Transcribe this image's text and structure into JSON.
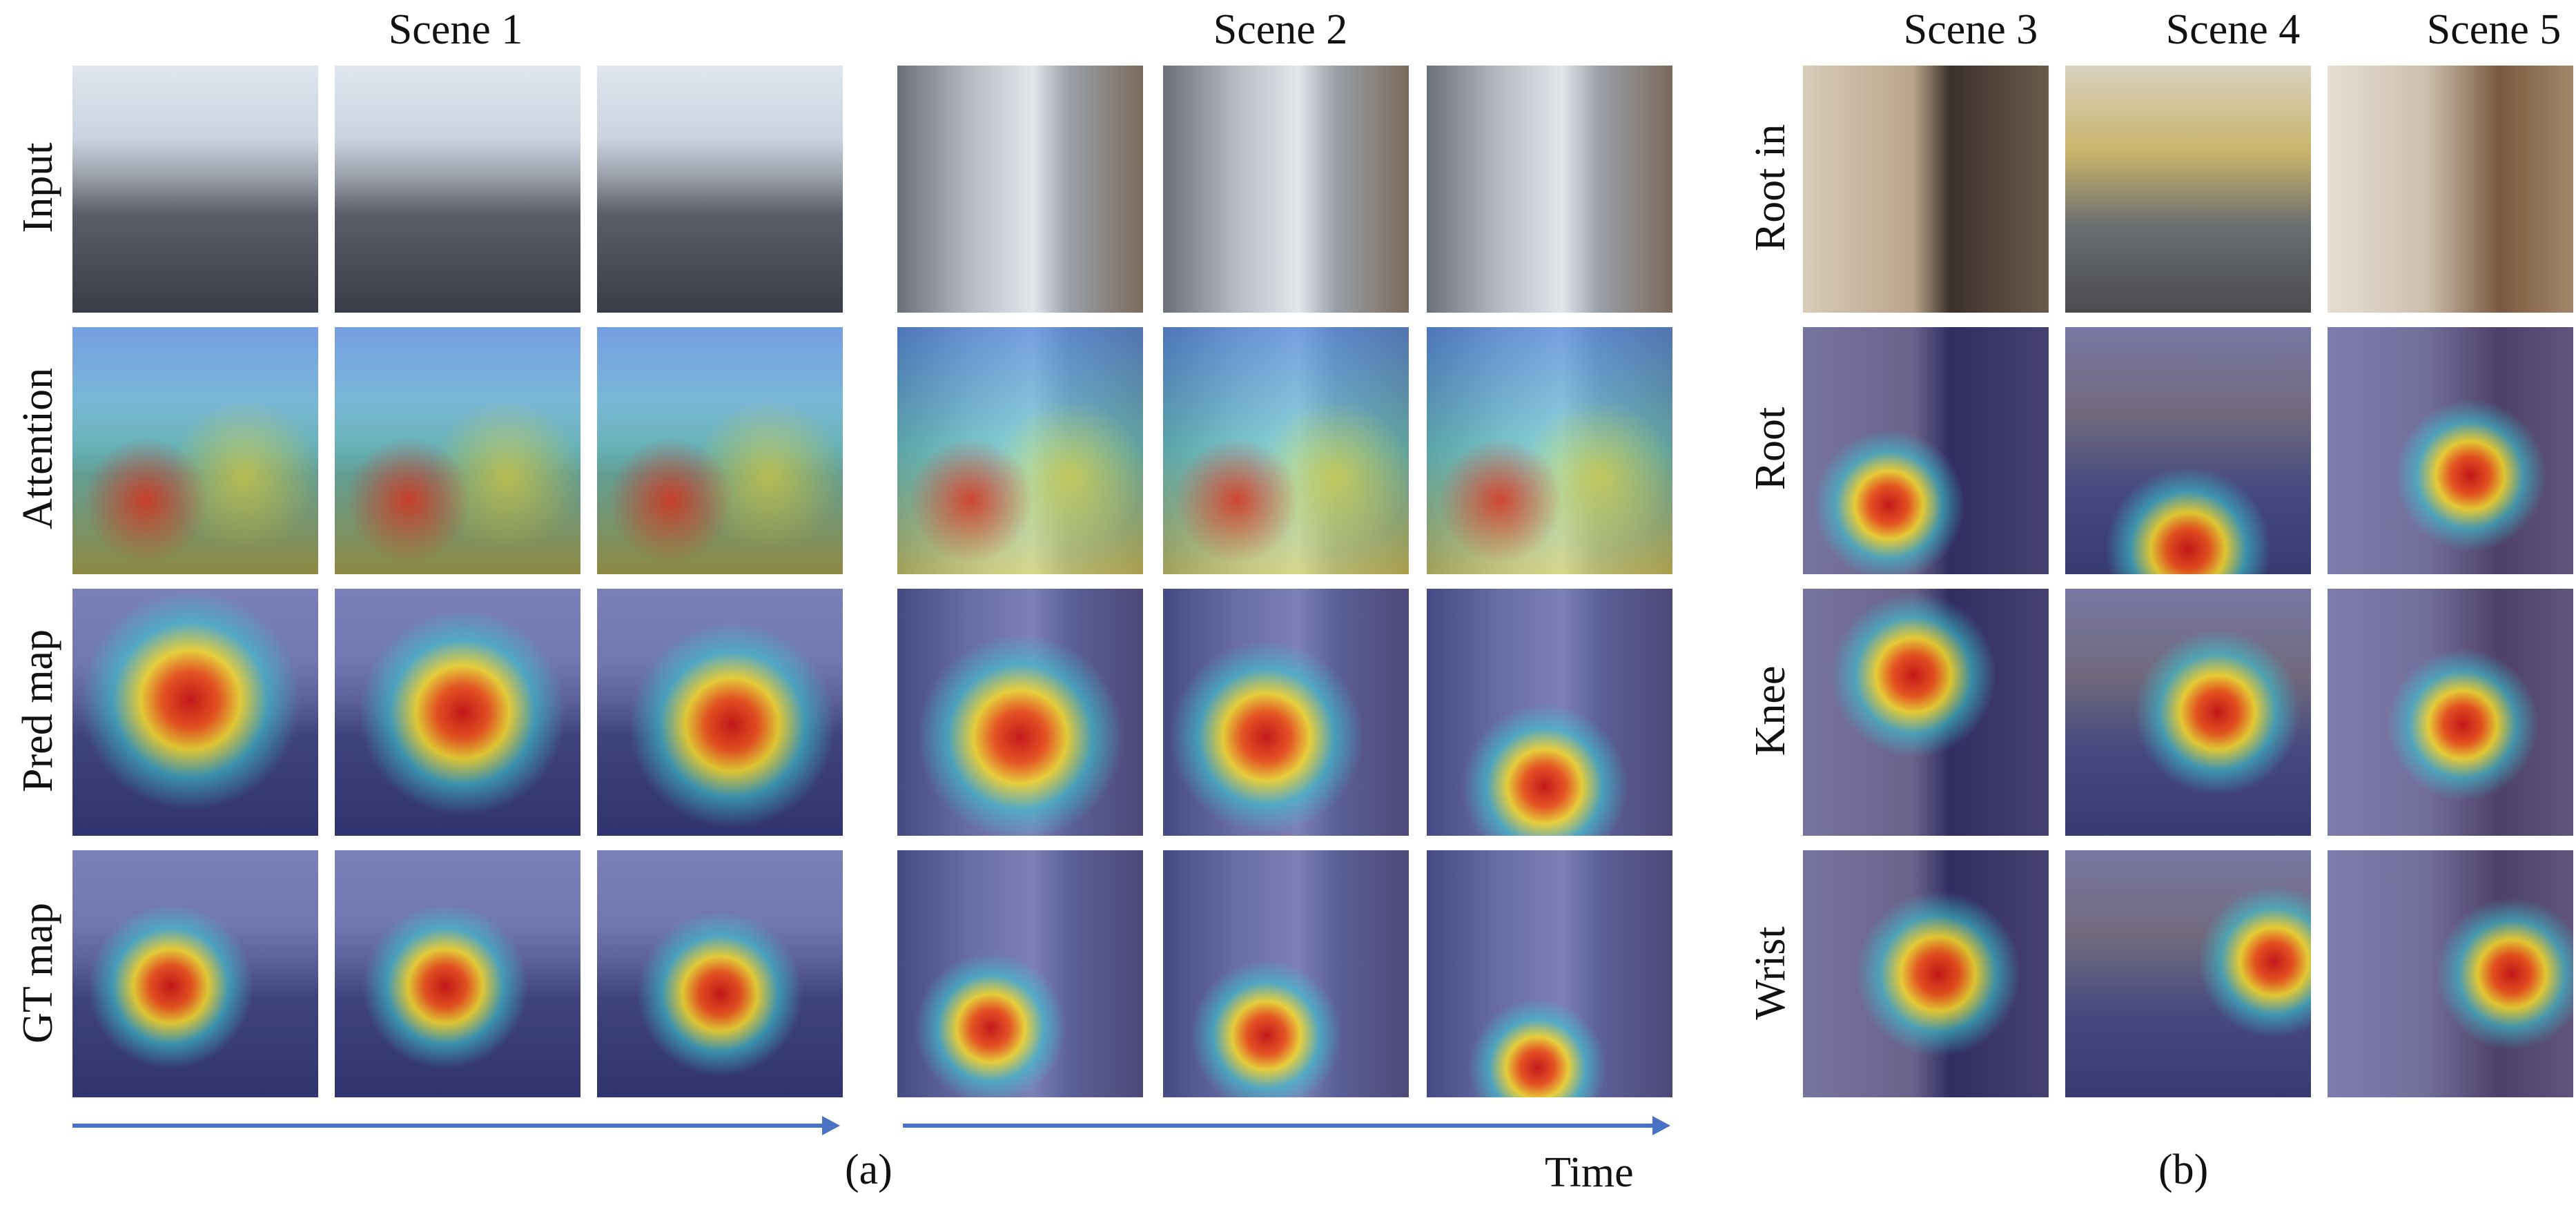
{
  "panel_a": {
    "scene_headers": [
      "Scene 1",
      "Scene 2"
    ],
    "row_labels": [
      "Input",
      "Attention",
      "Pred map",
      "GT map"
    ],
    "caption": "(a)",
    "time_label": "Time"
  },
  "panel_b": {
    "scene_headers": [
      "Scene 3",
      "Scene 4",
      "Scene 5"
    ],
    "row_labels": [
      "Root in",
      "Root",
      "Knee",
      "Wrist"
    ],
    "caption": "(b)"
  },
  "colors": {
    "arrow": "#4a72c4",
    "heat_low": "#2b2c8a",
    "heat_mid": "#31c7d8",
    "heat_high": "#e3261b"
  }
}
